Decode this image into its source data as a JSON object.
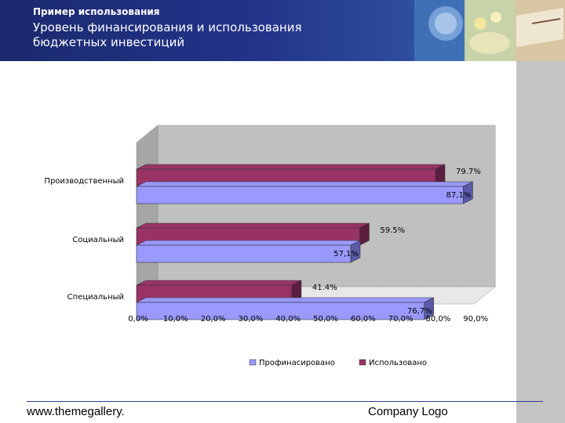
{
  "header": {
    "title": "Пример использования",
    "subtitle": "Уровень финансирования и использования  бюджетных инвестиций"
  },
  "footer": {
    "website": "www.themegallery.",
    "logo_text": "Company Logo"
  },
  "colors": {
    "header_bg": "#22338a",
    "series_financed": "#9999ff",
    "series_used": "#993366",
    "plot_wall": "#c0c0c0",
    "right_panel": "#c4c4c4"
  },
  "chart_data": {
    "type": "bar",
    "orientation": "horizontal",
    "categories": [
      "Производственный",
      "Социальный",
      "Специальный"
    ],
    "series": [
      {
        "name": "Профинасировано",
        "values": [
          87.1,
          57.1,
          76.7
        ],
        "labels": [
          "87,1%",
          "57,1%",
          "76,7%"
        ]
      },
      {
        "name": "Использовано",
        "values": [
          79.7,
          59.5,
          41.4
        ],
        "labels": [
          "79.7%",
          "59.5%",
          "41.4%"
        ]
      }
    ],
    "x_ticks": [
      "0,0%",
      "10,0%",
      "20,0%",
      "30,0%",
      "40,0%",
      "50,0%",
      "60,0%",
      "70,0%",
      "80,0%",
      "90,0%"
    ],
    "xlim": [
      0,
      90
    ],
    "legend_position": "bottom",
    "grid": false
  }
}
